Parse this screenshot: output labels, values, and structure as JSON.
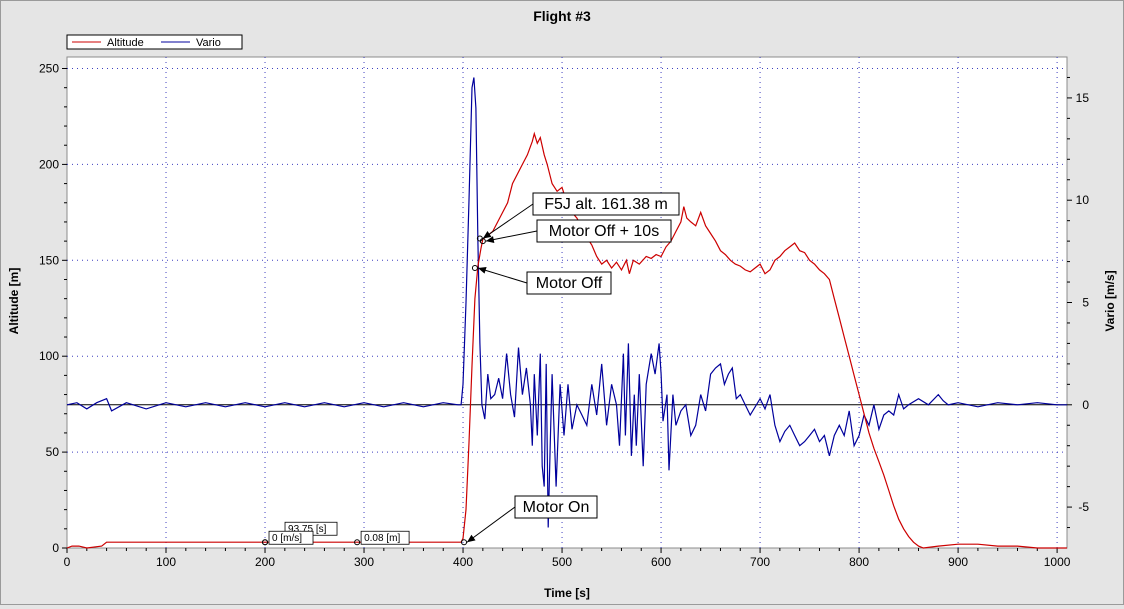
{
  "chart_data": {
    "type": "line",
    "title": "Flight #3",
    "xlabel": "Time [s]",
    "ylabel_left": "Altitude [m]",
    "ylabel_right": "Vario [m/s]",
    "xlim": [
      0,
      1010
    ],
    "ylim_left": [
      0,
      256
    ],
    "ylim_right": [
      -7,
      17
    ],
    "xticks": [
      "0",
      "100",
      "200",
      "300",
      "400",
      "500",
      "600",
      "700",
      "800",
      "900",
      "1000"
    ],
    "yticks_left": [
      "0",
      "50",
      "100",
      "150",
      "200",
      "250"
    ],
    "yticks_right": [
      "-5",
      "0",
      "5",
      "10",
      "15"
    ],
    "grid": true,
    "legend_position": "top-left",
    "series": [
      {
        "name": "Altitude",
        "axis": "left",
        "color": "#cc0000",
        "points": [
          [
            0,
            0
          ],
          [
            5,
            1
          ],
          [
            12,
            1
          ],
          [
            20,
            0
          ],
          [
            35,
            1
          ],
          [
            40,
            3
          ],
          [
            100,
            3
          ],
          [
            200,
            3
          ],
          [
            300,
            3
          ],
          [
            350,
            3
          ],
          [
            390,
            3
          ],
          [
            398,
            3
          ],
          [
            400,
            5
          ],
          [
            403,
            20
          ],
          [
            406,
            55
          ],
          [
            409,
            95
          ],
          [
            412,
            130
          ],
          [
            415,
            147
          ],
          [
            418,
            156
          ],
          [
            420,
            161
          ],
          [
            425,
            163
          ],
          [
            430,
            165
          ],
          [
            435,
            170
          ],
          [
            445,
            180
          ],
          [
            450,
            190
          ],
          [
            460,
            200
          ],
          [
            465,
            205
          ],
          [
            470,
            212
          ],
          [
            472,
            216
          ],
          [
            475,
            211
          ],
          [
            478,
            214
          ],
          [
            482,
            205
          ],
          [
            485,
            200
          ],
          [
            490,
            190
          ],
          [
            495,
            186
          ],
          [
            500,
            188
          ],
          [
            505,
            180
          ],
          [
            510,
            175
          ],
          [
            515,
            172
          ],
          [
            520,
            167
          ],
          [
            525,
            162
          ],
          [
            530,
            158
          ],
          [
            535,
            152
          ],
          [
            540,
            148
          ],
          [
            545,
            150
          ],
          [
            550,
            146
          ],
          [
            555,
            149
          ],
          [
            560,
            145
          ],
          [
            565,
            150
          ],
          [
            568,
            143
          ],
          [
            572,
            150
          ],
          [
            578,
            148
          ],
          [
            585,
            152
          ],
          [
            590,
            151
          ],
          [
            595,
            153
          ],
          [
            600,
            152
          ],
          [
            605,
            157
          ],
          [
            610,
            160
          ],
          [
            615,
            165
          ],
          [
            620,
            170
          ],
          [
            623,
            178
          ],
          [
            626,
            172
          ],
          [
            630,
            170
          ],
          [
            635,
            168
          ],
          [
            640,
            175
          ],
          [
            645,
            168
          ],
          [
            650,
            164
          ],
          [
            655,
            160
          ],
          [
            660,
            155
          ],
          [
            665,
            153
          ],
          [
            670,
            150
          ],
          [
            675,
            148
          ],
          [
            680,
            147
          ],
          [
            685,
            145
          ],
          [
            690,
            144
          ],
          [
            695,
            146
          ],
          [
            700,
            148
          ],
          [
            705,
            143
          ],
          [
            710,
            145
          ],
          [
            715,
            150
          ],
          [
            720,
            152
          ],
          [
            725,
            155
          ],
          [
            730,
            157
          ],
          [
            735,
            159
          ],
          [
            740,
            155
          ],
          [
            745,
            154
          ],
          [
            750,
            150
          ],
          [
            755,
            148
          ],
          [
            760,
            145
          ],
          [
            765,
            143
          ],
          [
            770,
            140
          ],
          [
            775,
            130
          ],
          [
            780,
            120
          ],
          [
            785,
            110
          ],
          [
            790,
            100
          ],
          [
            795,
            90
          ],
          [
            800,
            80
          ],
          [
            805,
            70
          ],
          [
            810,
            60
          ],
          [
            815,
            52
          ],
          [
            820,
            45
          ],
          [
            825,
            38
          ],
          [
            830,
            30
          ],
          [
            835,
            22
          ],
          [
            840,
            15
          ],
          [
            845,
            10
          ],
          [
            850,
            6
          ],
          [
            855,
            3
          ],
          [
            860,
            1
          ],
          [
            865,
            0
          ],
          [
            880,
            1
          ],
          [
            900,
            2
          ],
          [
            920,
            2
          ],
          [
            940,
            1
          ],
          [
            960,
            1
          ],
          [
            980,
            0
          ],
          [
            1000,
            0
          ],
          [
            1010,
            0
          ]
        ]
      },
      {
        "name": "Vario",
        "axis": "right",
        "color": "#00009c",
        "points": [
          [
            0,
            0
          ],
          [
            10,
            0.1
          ],
          [
            20,
            -0.2
          ],
          [
            30,
            0.1
          ],
          [
            40,
            0.3
          ],
          [
            45,
            -0.3
          ],
          [
            60,
            0.1
          ],
          [
            80,
            -0.2
          ],
          [
            100,
            0.1
          ],
          [
            120,
            -0.1
          ],
          [
            140,
            0.1
          ],
          [
            160,
            -0.1
          ],
          [
            180,
            0.1
          ],
          [
            200,
            -0.1
          ],
          [
            220,
            0.1
          ],
          [
            240,
            -0.1
          ],
          [
            260,
            0.1
          ],
          [
            280,
            -0.1
          ],
          [
            300,
            0.1
          ],
          [
            320,
            -0.1
          ],
          [
            340,
            0.1
          ],
          [
            360,
            -0.1
          ],
          [
            380,
            0.1
          ],
          [
            395,
            0
          ],
          [
            398,
            0
          ],
          [
            400,
            1
          ],
          [
            403,
            5
          ],
          [
            406,
            10
          ],
          [
            409,
            15.5
          ],
          [
            411,
            16
          ],
          [
            413,
            14.5
          ],
          [
            415,
            8
          ],
          [
            417,
            3
          ],
          [
            419,
            0
          ],
          [
            422,
            -0.7
          ],
          [
            425,
            1.5
          ],
          [
            428,
            0.3
          ],
          [
            432,
            0.5
          ],
          [
            436,
            1.3
          ],
          [
            440,
            0.3
          ],
          [
            444,
            2.5
          ],
          [
            448,
            0.5
          ],
          [
            452,
            -0.6
          ],
          [
            456,
            2.8
          ],
          [
            460,
            0.5
          ],
          [
            464,
            1.8
          ],
          [
            468,
            0
          ],
          [
            470,
            -2
          ],
          [
            472,
            1.5
          ],
          [
            475,
            -1.5
          ],
          [
            478,
            2.5
          ],
          [
            480,
            -3
          ],
          [
            482,
            -4
          ],
          [
            484,
            2
          ],
          [
            486,
            -6
          ],
          [
            488,
            -2
          ],
          [
            490,
            1.5
          ],
          [
            494,
            -4
          ],
          [
            498,
            1
          ],
          [
            502,
            -1.5
          ],
          [
            506,
            1
          ],
          [
            510,
            -1.2
          ],
          [
            515,
            0
          ],
          [
            520,
            -0.5
          ],
          [
            525,
            -1
          ],
          [
            530,
            1
          ],
          [
            535,
            -0.5
          ],
          [
            540,
            2
          ],
          [
            545,
            -1
          ],
          [
            550,
            1
          ],
          [
            555,
            0
          ],
          [
            558,
            -2
          ],
          [
            562,
            2.5
          ],
          [
            564,
            -1.5
          ],
          [
            567,
            3
          ],
          [
            570,
            -2.5
          ],
          [
            573,
            0.5
          ],
          [
            575,
            -2
          ],
          [
            578,
            1.5
          ],
          [
            582,
            -3
          ],
          [
            585,
            1
          ],
          [
            590,
            2.5
          ],
          [
            594,
            1.5
          ],
          [
            598,
            3
          ],
          [
            600,
            1.5
          ],
          [
            602,
            -0.8
          ],
          [
            606,
            0.5
          ],
          [
            608,
            -3.2
          ],
          [
            612,
            0.5
          ],
          [
            615,
            -1
          ],
          [
            620,
            -0.3
          ],
          [
            625,
            0
          ],
          [
            630,
            -1.5
          ],
          [
            635,
            -1
          ],
          [
            640,
            0.5
          ],
          [
            645,
            -0.3
          ],
          [
            650,
            1.5
          ],
          [
            655,
            1.8
          ],
          [
            660,
            2
          ],
          [
            664,
            1
          ],
          [
            668,
            1.5
          ],
          [
            672,
            1.8
          ],
          [
            676,
            0.3
          ],
          [
            680,
            0.5
          ],
          [
            685,
            0
          ],
          [
            690,
            -0.5
          ],
          [
            700,
            0.3
          ],
          [
            705,
            -0.2
          ],
          [
            710,
            0.5
          ],
          [
            715,
            -1
          ],
          [
            720,
            -1.8
          ],
          [
            725,
            -1.3
          ],
          [
            730,
            -1
          ],
          [
            735,
            -1.5
          ],
          [
            740,
            -2
          ],
          [
            745,
            -1.8
          ],
          [
            750,
            -1.5
          ],
          [
            755,
            -1.2
          ],
          [
            760,
            -1.8
          ],
          [
            765,
            -1.5
          ],
          [
            770,
            -2.5
          ],
          [
            775,
            -1.5
          ],
          [
            780,
            -1
          ],
          [
            785,
            -1.5
          ],
          [
            790,
            -0.3
          ],
          [
            795,
            -2
          ],
          [
            800,
            -1.5
          ],
          [
            805,
            -0.5
          ],
          [
            810,
            -1
          ],
          [
            815,
            0
          ],
          [
            820,
            -1.2
          ],
          [
            825,
            -0.5
          ],
          [
            830,
            -0.3
          ],
          [
            835,
            -0.5
          ],
          [
            840,
            0.5
          ],
          [
            845,
            -0.2
          ],
          [
            850,
            0
          ],
          [
            860,
            0.3
          ],
          [
            870,
            0
          ],
          [
            880,
            0.5
          ],
          [
            885,
            0.2
          ],
          [
            890,
            0
          ],
          [
            900,
            0.1
          ],
          [
            920,
            -0.1
          ],
          [
            940,
            0.1
          ],
          [
            960,
            0
          ],
          [
            980,
            0.1
          ],
          [
            1000,
            0
          ],
          [
            1010,
            0
          ]
        ]
      }
    ],
    "annotations": [
      {
        "label": "F5J alt. 161.38 m",
        "x": 417,
        "y": 161.38
      },
      {
        "label": "Motor Off + 10s",
        "x": 420,
        "y": 160
      },
      {
        "label": "Motor Off",
        "x": 412,
        "y": 146
      },
      {
        "label": "Motor On",
        "x": 401,
        "y": 3
      }
    ],
    "cursors": [
      {
        "label": "93.75 [s]",
        "x": 200,
        "y": 3
      },
      {
        "label": "0 [m/s]",
        "x": 200,
        "y": 3
      },
      {
        "label": "0.08 [m]",
        "x": 293,
        "y": 3
      }
    ]
  }
}
